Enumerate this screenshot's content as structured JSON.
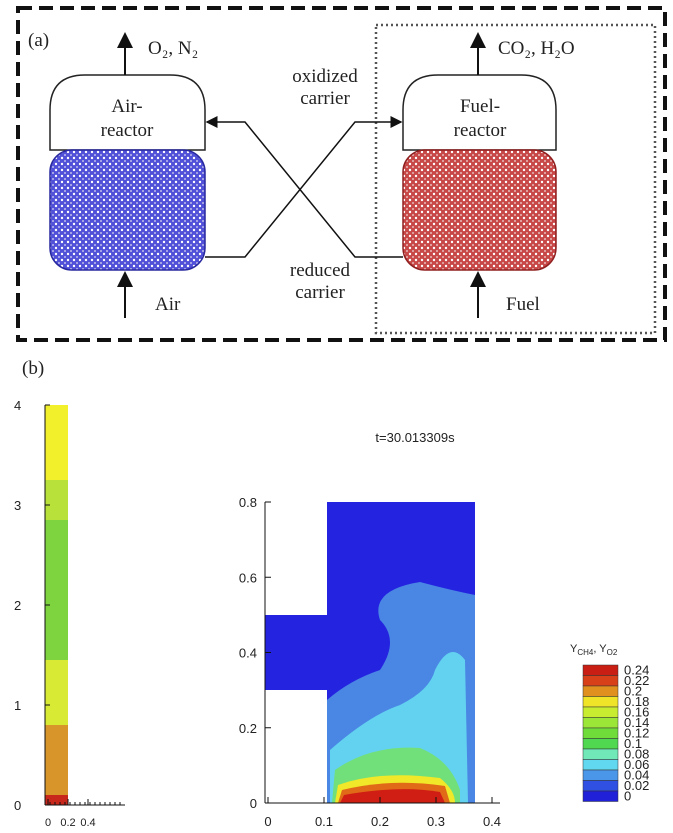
{
  "panel_a": {
    "label": "(a)",
    "top_left": "O₂, N₂",
    "top_right": "CO₂, H₂O",
    "air_reactor": [
      "Air-",
      "reactor"
    ],
    "fuel_reactor": [
      "Fuel-",
      "reactor"
    ],
    "oxidized": [
      "oxidized",
      "carrier"
    ],
    "reduced": [
      "reduced",
      "carrier"
    ],
    "inlet_left": "Air",
    "inlet_right": "Fuel"
  },
  "panel_b": {
    "label": "(b)",
    "column_plot": {
      "yticks": [
        "0",
        "1",
        "2",
        "3",
        "4"
      ],
      "xticks": [
        "0",
        "0.2",
        "0.4"
      ]
    },
    "contour_plot": {
      "title": "t=30.013309s",
      "yticks": [
        "0",
        "0.2",
        "0.4",
        "0.6",
        "0.8"
      ],
      "xticks": [
        "0",
        "0.1",
        "0.2",
        "0.3",
        "0.4"
      ]
    },
    "colorbar": {
      "title_parts": [
        "Y",
        "CH4",
        ", Y",
        "O2"
      ],
      "labels": [
        "0.24",
        "0.22",
        "0.2",
        "0.18",
        "0.16",
        "0.14",
        "0.12",
        "0.1",
        "0.08",
        "0.06",
        "0.04",
        "0.02",
        "0"
      ]
    }
  }
}
